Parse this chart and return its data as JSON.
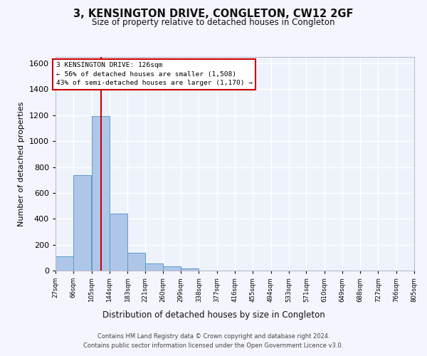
{
  "title": "3, KENSINGTON DRIVE, CONGLETON, CW12 2GF",
  "subtitle": "Size of property relative to detached houses in Congleton",
  "xlabel": "Distribution of detached houses by size in Congleton",
  "ylabel": "Number of detached properties",
  "footer_line1": "Contains HM Land Registry data © Crown copyright and database right 2024.",
  "footer_line2": "Contains public sector information licensed under the Open Government Licence v3.0.",
  "bar_color": "#aec6e8",
  "bar_edge_color": "#5a9ec8",
  "background_color": "#eef2fb",
  "grid_color": "#ffffff",
  "annotation_text": "3 KENSINGTON DRIVE: 126sqm\n← 56% of detached houses are smaller (1,508)\n43% of semi-detached houses are larger (1,170) →",
  "annotation_box_color": "#cc0000",
  "property_line_color": "#cc0000",
  "bins": [
    27,
    66,
    105,
    144,
    183,
    221,
    260,
    299,
    338,
    377,
    416,
    455,
    494,
    533,
    571,
    610,
    649,
    688,
    727,
    766,
    805
  ],
  "bin_labels": [
    "27sqm",
    "66sqm",
    "105sqm",
    "144sqm",
    "183sqm",
    "221sqm",
    "260sqm",
    "299sqm",
    "338sqm",
    "377sqm",
    "416sqm",
    "455sqm",
    "494sqm",
    "533sqm",
    "571sqm",
    "610sqm",
    "649sqm",
    "688sqm",
    "727sqm",
    "766sqm",
    "805sqm"
  ],
  "bar_heights": [
    108,
    735,
    1195,
    438,
    137,
    55,
    32,
    14,
    0,
    0,
    0,
    0,
    0,
    0,
    0,
    0,
    0,
    0,
    0,
    0
  ],
  "ylim": [
    0,
    1650
  ],
  "yticks": [
    0,
    200,
    400,
    600,
    800,
    1000,
    1200,
    1400,
    1600
  ],
  "property_line_x": 126,
  "fig_bg": "#f5f5ff"
}
